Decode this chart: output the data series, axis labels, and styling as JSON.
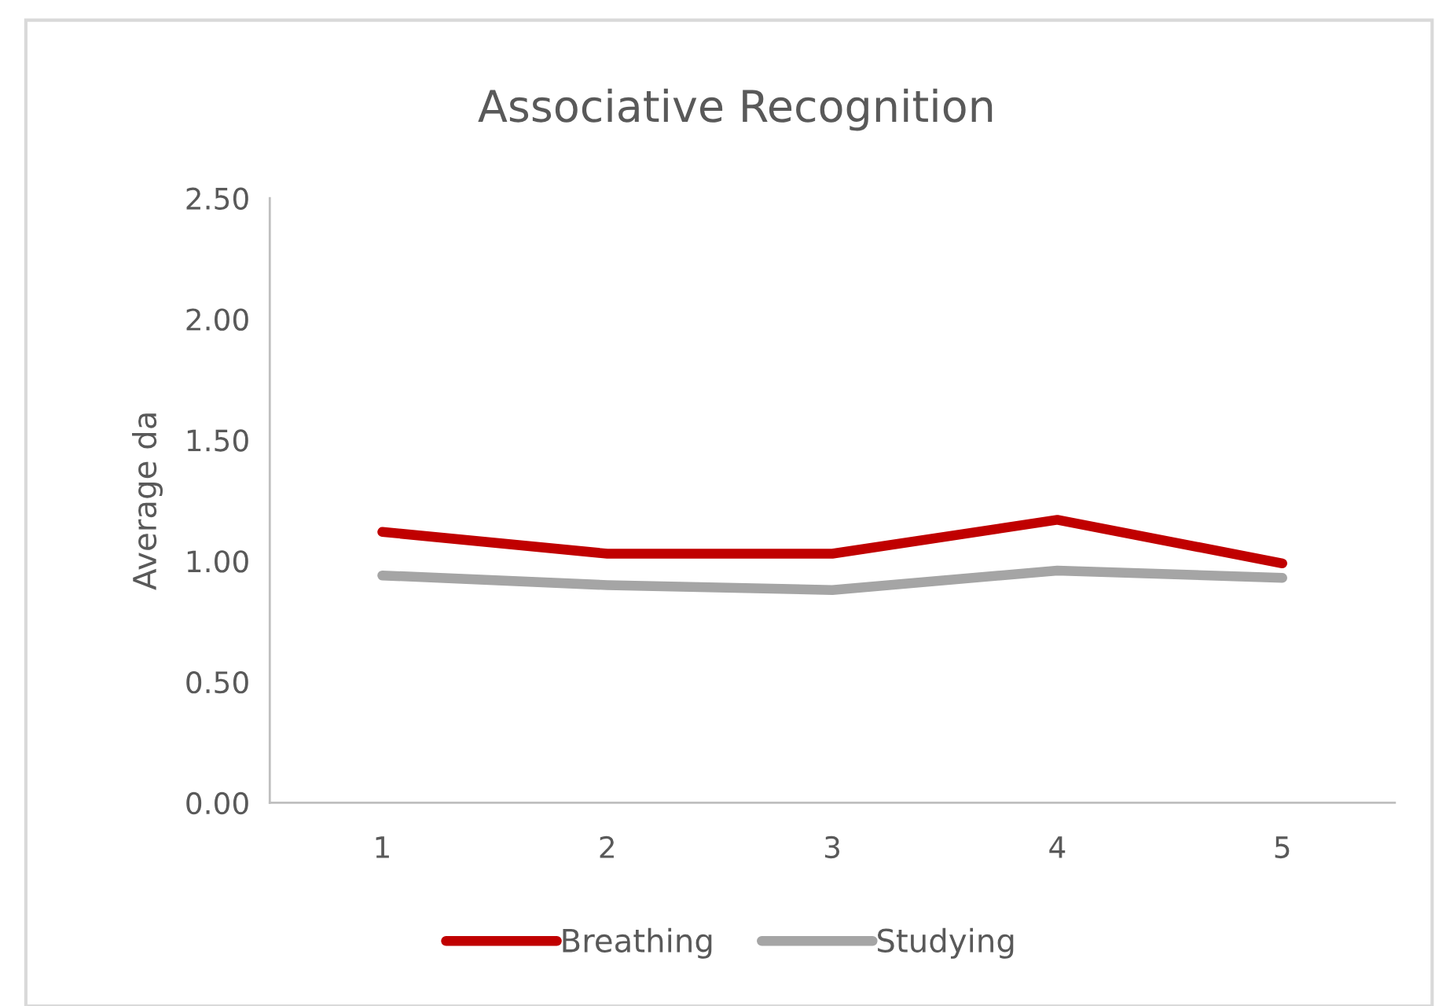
{
  "chart_data": {
    "type": "line",
    "title": "Associative Recognition",
    "ylabel": "Average da",
    "categories": [
      "1",
      "2",
      "3",
      "4",
      "5"
    ],
    "series": [
      {
        "name": "Breathing",
        "color": "#c00000",
        "values": [
          1.12,
          1.03,
          1.03,
          1.17,
          0.99
        ]
      },
      {
        "name": "Studying",
        "color": "#a5a5a5",
        "values": [
          0.94,
          0.9,
          0.88,
          0.96,
          0.93
        ]
      }
    ],
    "ylim": [
      0,
      2.5
    ],
    "yticks": [
      {
        "value": 0,
        "label": "0.00"
      },
      {
        "value": 0.5,
        "label": "0.50"
      },
      {
        "value": 1.0,
        "label": "1.00"
      },
      {
        "value": 1.5,
        "label": "1.50"
      },
      {
        "value": 2.0,
        "label": "2.00"
      },
      {
        "value": 2.5,
        "label": "2.50"
      }
    ],
    "grid": false,
    "legend": "bottom",
    "line_style": "solid"
  }
}
